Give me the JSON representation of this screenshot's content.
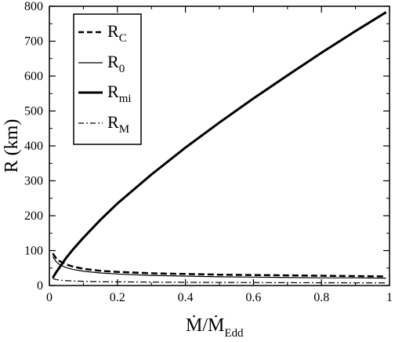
{
  "chart_data": {
    "type": "line",
    "xlabel": {
      "main": "Ṁ/Ṁ",
      "sub": "Edd"
    },
    "ylabel": "R (km)",
    "xlim": [
      0,
      1
    ],
    "ylim": [
      0,
      800
    ],
    "x_ticks": [
      0,
      0.2,
      0.4,
      0.6,
      0.8,
      1
    ],
    "x_tick_labels": [
      "0",
      "0.2",
      "0.4",
      "0.6",
      "0.8",
      "1"
    ],
    "y_ticks": [
      0,
      100,
      200,
      300,
      400,
      500,
      600,
      700,
      800
    ],
    "y_tick_labels": [
      "0",
      "100",
      "200",
      "300",
      "400",
      "500",
      "600",
      "700",
      "800"
    ],
    "grid": false,
    "legend_position": "top-left",
    "series": [
      {
        "name": "R",
        "sub": "C",
        "style": "dashed",
        "x": [
          0.01,
          0.02,
          0.03,
          0.05,
          0.07,
          0.1,
          0.15,
          0.2,
          0.3,
          0.4,
          0.5,
          0.6,
          0.7,
          0.8,
          0.9,
          0.99
        ],
        "y": [
          92,
          78,
          70,
          60,
          54,
          48,
          42,
          39,
          35,
          33,
          31,
          30,
          29,
          28,
          27,
          26
        ]
      },
      {
        "name": "R",
        "sub": "0",
        "style": "thin",
        "x": [
          0.01,
          0.02,
          0.03,
          0.05,
          0.07,
          0.1,
          0.15,
          0.2,
          0.3,
          0.4,
          0.5,
          0.6,
          0.7,
          0.8,
          0.9,
          0.99
        ],
        "y": [
          83,
          68,
          60,
          51,
          46,
          41,
          36,
          33,
          29,
          27,
          25,
          24,
          23,
          22,
          22,
          21
        ]
      },
      {
        "name": "R",
        "sub": "mi",
        "style": "thick",
        "x": [
          0.01,
          0.02,
          0.03,
          0.05,
          0.07,
          0.1,
          0.15,
          0.2,
          0.3,
          0.4,
          0.5,
          0.6,
          0.7,
          0.8,
          0.9,
          0.99
        ],
        "y": [
          22,
          38,
          52,
          80,
          104,
          137,
          188,
          235,
          318,
          395,
          467,
          536,
          602,
          667,
          729,
          783
        ]
      },
      {
        "name": "R",
        "sub": "M",
        "style": "dash-dot",
        "x": [
          0.01,
          0.02,
          0.03,
          0.05,
          0.07,
          0.1,
          0.15,
          0.2,
          0.3,
          0.4,
          0.5,
          0.6,
          0.7,
          0.8,
          0.9,
          0.99
        ],
        "y": [
          20,
          17,
          15.5,
          14,
          13,
          12,
          11,
          10.5,
          9.8,
          9.2,
          8.8,
          8.4,
          8.1,
          7.9,
          7.7,
          7.5
        ]
      }
    ]
  }
}
